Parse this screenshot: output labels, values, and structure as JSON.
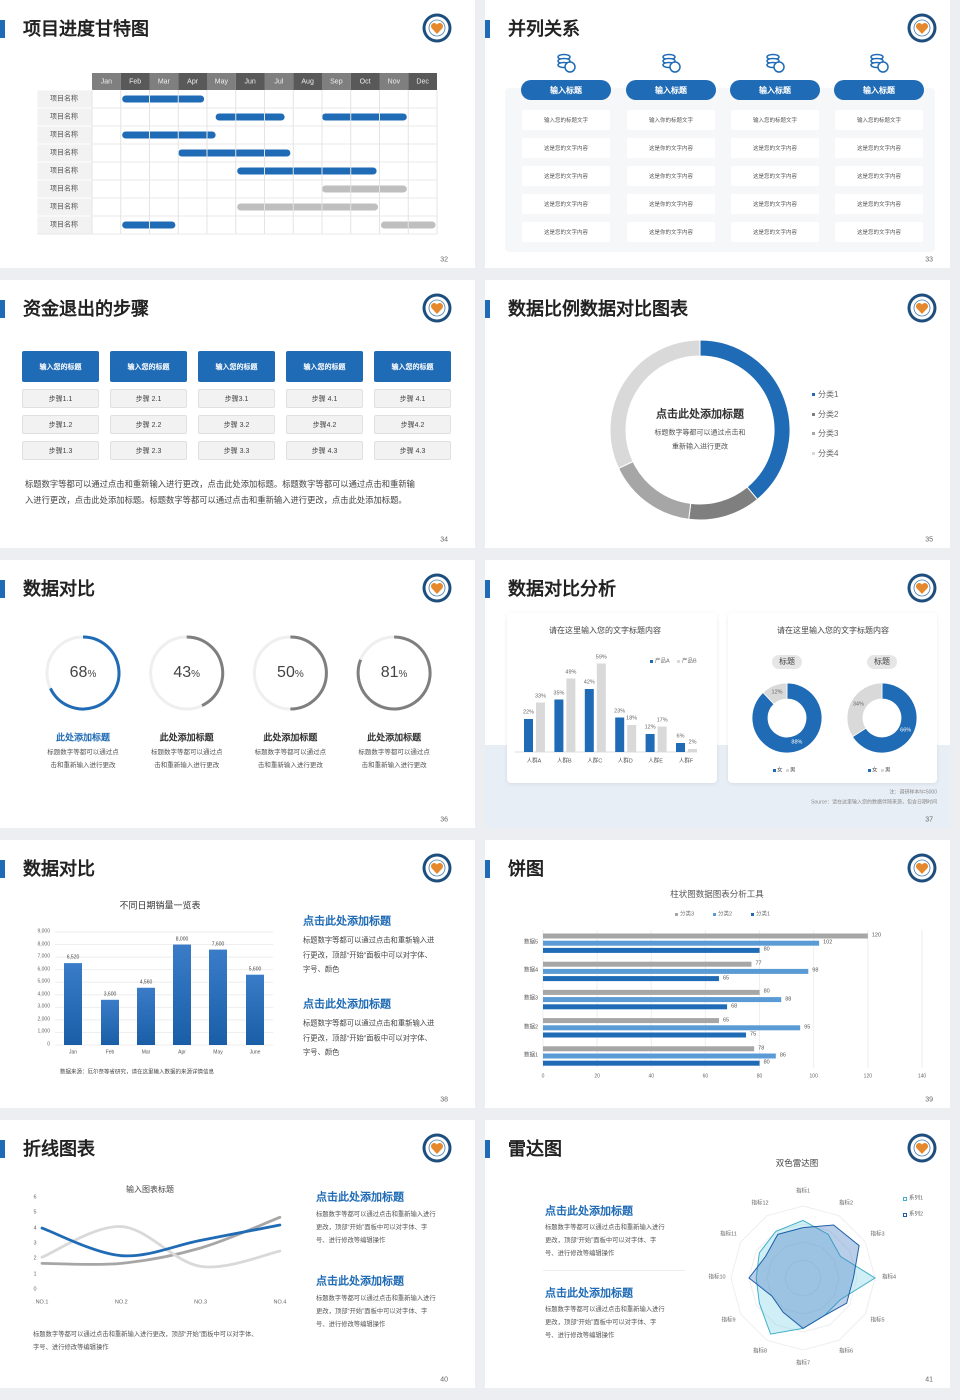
{
  "colors": {
    "accent": "#1f6bb5",
    "dark_gray": "#7f7f7f",
    "light_gray": "#d9d9d9",
    "logo_navy": "#1d4e7e",
    "logo_orange": "#e6892d"
  },
  "logo_icon": "school-emblem-logo",
  "s32": {
    "title": "项目进度甘特图",
    "page": "32",
    "months": [
      "Jan",
      "Feb",
      "Mar",
      "Apr",
      "May",
      "Jun",
      "Jul",
      "Aug",
      "Sep",
      "Oct",
      "Nov",
      "Dec"
    ],
    "rows": [
      {
        "label": "项目名称",
        "bars": [
          {
            "start": 1.05,
            "end": 3.9,
            "color": "blue"
          }
        ]
      },
      {
        "label": "项目名称",
        "bars": [
          {
            "start": 4.3,
            "end": 6.7,
            "color": "blue"
          },
          {
            "start": 8.0,
            "end": 10.95,
            "color": "blue"
          }
        ]
      },
      {
        "label": "项目名称",
        "bars": [
          {
            "start": 1.05,
            "end": 4.3,
            "color": "blue"
          }
        ]
      },
      {
        "label": "项目名称",
        "bars": [
          {
            "start": 3.0,
            "end": 6.9,
            "color": "blue"
          }
        ]
      },
      {
        "label": "项目名称",
        "bars": [
          {
            "start": 5.05,
            "end": 9.9,
            "color": "blue"
          }
        ]
      },
      {
        "label": "项目名称",
        "bars": [
          {
            "start": 8.0,
            "end": 10.95,
            "color": "gray"
          }
        ]
      },
      {
        "label": "项目名称",
        "bars": [
          {
            "start": 5.05,
            "end": 9.95,
            "color": "gray"
          }
        ]
      },
      {
        "label": "项目名称",
        "bars": [
          {
            "start": 1.05,
            "end": 2.9,
            "color": "blue"
          },
          {
            "start": 10.05,
            "end": 11.95,
            "color": "gray"
          }
        ]
      }
    ]
  },
  "s33": {
    "title": "并列关系",
    "page": "33",
    "icon": "coin-stack-icon",
    "columns": [
      {
        "header": "输入标题",
        "cells": [
          "输入您的标题文字",
          "这是您的文字内容",
          "这是您的文字内容",
          "这是您的文字内容",
          "这是您的文字内容"
        ]
      },
      {
        "header": "输入标题",
        "cells": [
          "输入你的标题文字",
          "这是你的文字内容",
          "这是你的文字内容",
          "这是你的文字内容",
          "这是你的文字内容"
        ]
      },
      {
        "header": "输入标题",
        "cells": [
          "输入您的标题文字",
          "这是您的文字内容",
          "这是您的文字内容",
          "这是您的文字内容",
          "这是您的文字内容"
        ]
      },
      {
        "header": "输入标题",
        "cells": [
          "输入您的标题文字",
          "这是您的文字内容",
          "这是您的文字内容",
          "这是您的文字内容",
          "这是您的文字内容"
        ]
      }
    ]
  },
  "s34": {
    "title": "资金退出的步骤",
    "page": "34",
    "columns": [
      {
        "header": "输入您的标题",
        "steps": [
          "步骤1.1",
          "步骤1.2",
          "步骤1.3"
        ]
      },
      {
        "header": "输入您的标题",
        "steps": [
          "步骤 2.1",
          "步骤 2.2",
          "步骤 2.3"
        ]
      },
      {
        "header": "输入您的标题",
        "steps": [
          "步骤3.1",
          "步骤 3.2",
          "步骤 3.3"
        ]
      },
      {
        "header": "输入您的标题",
        "steps": [
          "步骤 4.1",
          "步骤4.2",
          "步骤 4.3"
        ]
      },
      {
        "header": "输入您的标题",
        "steps": [
          "步骤 4.1",
          "步骤4.2",
          "步骤 4.3"
        ]
      }
    ],
    "paragraph_lines": [
      "标题数字等都可以通过点击和重新输入进行更改，点击此处添加标题。标题数字等都可以通过点击和重新输",
      "入进行更改，点击此处添加标题。标题数字等都可以通过点击和重新输入进行更改，点击此处添加标题。"
    ]
  },
  "s35": {
    "title": "数据比例数据对比图表",
    "page": "35",
    "center_title": "点击此处添加标题",
    "center_lines": [
      "标题数字等都可以通过点击和",
      "重新输入进行更改"
    ]
  },
  "s36": {
    "title": "数据对比",
    "page": "36",
    "percent_sign": "%",
    "items": [
      {
        "value": 68,
        "color": "#1f6bb5",
        "heading": "此处添加标题",
        "lines": [
          "标题数字等都可以通过点",
          "击和重新输入进行更改"
        ]
      },
      {
        "value": 43,
        "color": "#7f7f7f",
        "heading": "此处添加标题",
        "lines": [
          "标题数字等都可以通过点",
          "击和重新输入进行更改"
        ]
      },
      {
        "value": 50,
        "color": "#7f7f7f",
        "heading": "此处添加标题",
        "lines": [
          "标题数字等都可以通过点",
          "击和重新输入进行更改"
        ]
      },
      {
        "value": 81,
        "color": "#7f7f7f",
        "heading": "此处添加标题",
        "lines": [
          "标题数字等都可以通过点",
          "击和重新输入进行更改"
        ]
      }
    ]
  },
  "s37": {
    "title": "数据对比分析",
    "page": "37",
    "note": "注：调研样本N=5000",
    "source": "Source：请在这里输入您的数据伴随来源，包含日期时间"
  },
  "s38": {
    "title": "数据对比",
    "page": "38",
    "source": "数据来源：厄尔奈等省研究，请在这里输入数据的来源详情信息",
    "blocks": [
      {
        "heading": "点击此处添加标题",
        "lines": [
          "标题数字等都可以通过点击和重新输入进",
          "行更改，顶部“开始”面板中可以对字体、",
          "字号、颜色"
        ]
      },
      {
        "heading": "点击此处添加标题",
        "lines": [
          "标题数字等都可以通过点击和重新输入进",
          "行更改，顶部“开始”面板中可以对字体、",
          "字号、颜色"
        ]
      }
    ]
  },
  "s39": {
    "title": "饼图",
    "page": "39"
  },
  "s40": {
    "title": "折线图表",
    "page": "40",
    "paragraph_lines": [
      "标题数字等都可以通过点击和重新输入进行更改，顶部“开始”面板中可以对字体、",
      "字号、进行修改等编辑操作"
    ],
    "blocks": [
      {
        "heading": "点击此处添加标题",
        "lines": [
          "标题数字等都可以通过点击和重新输入进行",
          "更改，顶部“开始”面板中可以对字体、字",
          "号、进行修改等编辑操作"
        ]
      },
      {
        "heading": "点击此处添加标题",
        "lines": [
          "标题数字等都可以通过点击和重新输入进行",
          "更改，顶部“开始”面板中可以对字体、字",
          "号、进行修改等编辑操作"
        ]
      }
    ]
  },
  "s41": {
    "title": "雷达图",
    "page": "41",
    "blocks": [
      {
        "heading": "点击此处添加标题",
        "lines": [
          "标题数字等都可以通过点击和重新输入进行",
          "更改，顶部“开始”面板中可以对字体、字",
          "号、进行修改等编辑操作"
        ]
      },
      {
        "heading": "点击此处添加标题",
        "lines": [
          "标题数字等都可以通过点击和重新输入进行",
          "更改，顶部“开始”面板中可以对字体、字",
          "号、进行修改等编辑操作"
        ]
      }
    ]
  },
  "chart_data": [
    {
      "id": "donut35",
      "type": "pie",
      "donut": true,
      "categories": [
        "分类1",
        "分类2",
        "分类3",
        "分类4"
      ],
      "values": [
        39,
        13,
        16,
        32
      ],
      "colors": [
        "#1f6bb5",
        "#7f7f7f",
        "#a6a6a6",
        "#d9d9d9"
      ],
      "legend": "right"
    },
    {
      "id": "bar37",
      "type": "bar",
      "title": "请在这里输入您的文字标题内容",
      "categories": [
        "人群A",
        "人群B",
        "人群C",
        "人群D",
        "人群E",
        "人群F"
      ],
      "series": [
        {
          "name": "产品A",
          "values": [
            22,
            35,
            42,
            23,
            12,
            6
          ],
          "color": "#1f6bb5"
        },
        {
          "name": "产品B",
          "values": [
            33,
            49,
            59,
            18,
            17,
            2
          ],
          "color": "#d9d9d9"
        }
      ],
      "unit": "%",
      "legend": "top-right"
    },
    {
      "id": "donuts37",
      "type": "pie",
      "donut": true,
      "title": "请在这里输入您的文字标题内容",
      "charts": [
        {
          "label": "标题",
          "categories": [
            "女",
            "男"
          ],
          "values": [
            88,
            12
          ]
        },
        {
          "label": "标题",
          "categories": [
            "女",
            "男"
          ],
          "values": [
            66,
            34
          ]
        }
      ],
      "colors": [
        "#1f6bb5",
        "#d9d9d9"
      ],
      "unit": "%",
      "legend": "bottom"
    },
    {
      "id": "bar38",
      "type": "bar",
      "title": "不同日期销量一览表",
      "categories": [
        "Jan",
        "Feb",
        "Mar",
        "Apr",
        "May",
        "June"
      ],
      "values": [
        6520,
        3600,
        4560,
        8000,
        7600,
        5600
      ],
      "value_labels": [
        "6,520",
        "3,600",
        "4,560",
        "8,000",
        "7,600",
        "5,600"
      ],
      "ylim": [
        0,
        9000
      ],
      "yticks": [
        "0",
        "1,000",
        "2,000",
        "3,000",
        "4,000",
        "5,000",
        "6,000",
        "7,000",
        "8,000",
        "9,000"
      ],
      "grid": true
    },
    {
      "id": "hbar39",
      "type": "bar",
      "orientation": "horizontal",
      "title": "柱状图数据图表分析工具",
      "categories": [
        "数据5",
        "数据4",
        "数据3",
        "数据2",
        "数据1"
      ],
      "series": [
        {
          "name": "分类3",
          "values": [
            120,
            77,
            80,
            65,
            78
          ],
          "color": "#a6a6a6"
        },
        {
          "name": "分类2",
          "values": [
            102,
            98,
            88,
            95,
            86
          ],
          "color": "#5b9bd5"
        },
        {
          "name": "分类1",
          "values": [
            80,
            65,
            68,
            75,
            80
          ],
          "color": "#1f6bb5"
        }
      ],
      "xlim": [
        0,
        140
      ],
      "xticks": [
        "0",
        "20",
        "40",
        "60",
        "80",
        "100",
        "120",
        "140"
      ],
      "legend": "top",
      "grid": true
    },
    {
      "id": "line40",
      "type": "line",
      "title": "输入图表标题",
      "categories": [
        "NO.1",
        "NO.2",
        "NO.3",
        "NO.4"
      ],
      "ylim": [
        0,
        6
      ],
      "yticks": [
        "0",
        "1",
        "2",
        "3",
        "4",
        "5",
        "6"
      ],
      "series": [
        {
          "values": [
            4.3,
            2.5,
            3.5,
            4.5
          ],
          "color": "#1f6bb5"
        },
        {
          "values": [
            2.4,
            4.4,
            1.8,
            2.8
          ],
          "color": "#d9d9d9"
        },
        {
          "values": [
            2.0,
            2.0,
            3.0,
            5.0
          ],
          "color": "#a6a6a6"
        }
      ]
    },
    {
      "id": "radar41",
      "type": "radar",
      "title": "双色雷达图",
      "categories": [
        "指标1",
        "指标2",
        "指标3",
        "指标4",
        "指标5",
        "指标6",
        "指标7",
        "指标8",
        "指标9",
        "指标10",
        "指标11",
        "指标12"
      ],
      "series": [
        {
          "name": "系列1",
          "values": [
            8,
            7,
            6,
            10,
            6,
            6,
            7,
            9,
            7,
            6.5,
            7,
            7.5
          ],
          "color": "#3fb0c9"
        },
        {
          "name": "系列2",
          "values": [
            7,
            8.5,
            9,
            7,
            7,
            6,
            7,
            5.5,
            5,
            7.5,
            6,
            7
          ],
          "color": "#1f5fa8"
        }
      ],
      "range": [
        0,
        10
      ],
      "legend": "top-right"
    }
  ]
}
